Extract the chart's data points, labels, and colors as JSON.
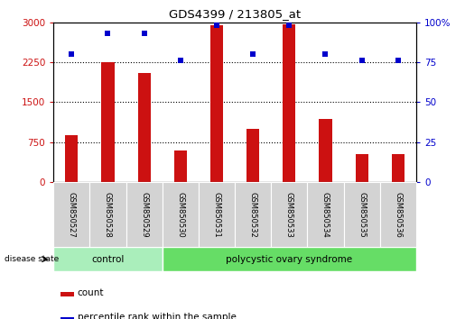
{
  "title": "GDS4399 / 213805_at",
  "samples": [
    "GSM850527",
    "GSM850528",
    "GSM850529",
    "GSM850530",
    "GSM850531",
    "GSM850532",
    "GSM850533",
    "GSM850534",
    "GSM850535",
    "GSM850536"
  ],
  "counts": [
    870,
    2250,
    2050,
    590,
    2940,
    1000,
    2960,
    1180,
    530,
    530
  ],
  "percentiles": [
    80,
    93,
    93,
    76,
    98,
    80,
    98,
    80,
    76,
    76
  ],
  "ylim_left": [
    0,
    3000
  ],
  "ylim_right": [
    0,
    100
  ],
  "yticks_left": [
    0,
    750,
    1500,
    2250,
    3000
  ],
  "yticks_right": [
    0,
    25,
    50,
    75,
    100
  ],
  "bar_color": "#cc1111",
  "dot_color": "#0000cc",
  "control_samples": 3,
  "control_label": "control",
  "disease_label": "polycystic ovary syndrome",
  "disease_state_label": "disease state",
  "legend_count": "count",
  "legend_percentile": "percentile rank within the sample",
  "control_color": "#aaeebb",
  "disease_color": "#66dd66",
  "label_bg_color": "#d3d3d3",
  "bar_width": 0.35,
  "fig_width": 5.15,
  "fig_height": 3.54
}
